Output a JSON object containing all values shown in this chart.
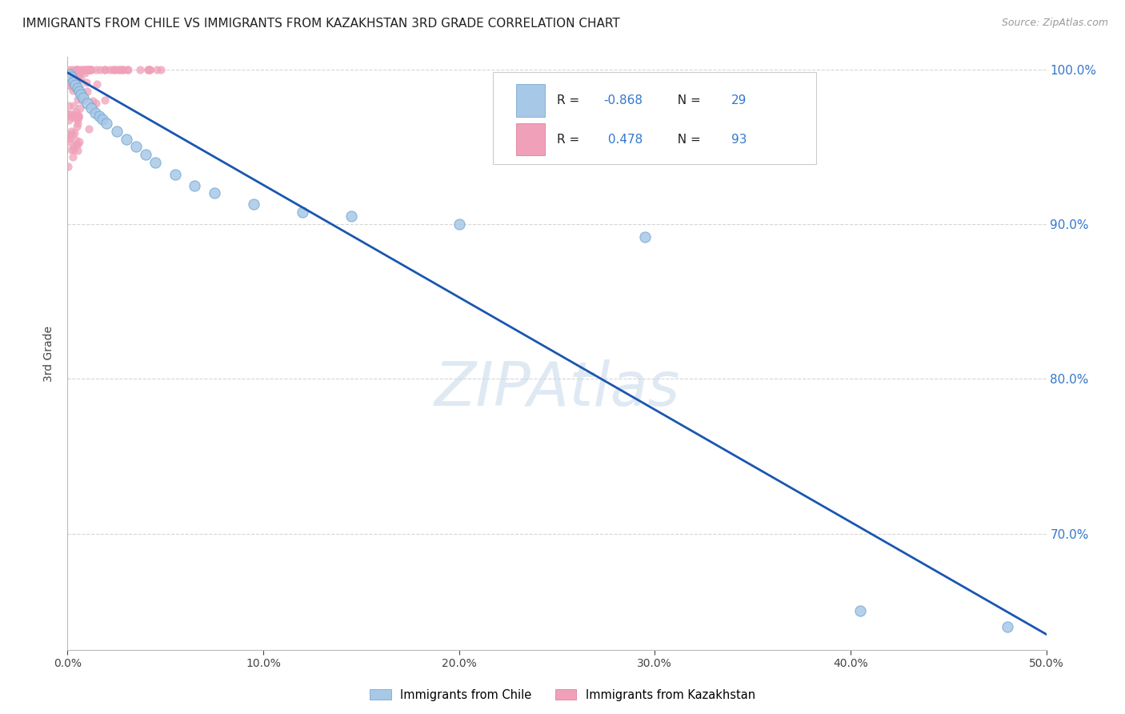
{
  "title": "IMMIGRANTS FROM CHILE VS IMMIGRANTS FROM KAZAKHSTAN 3RD GRADE CORRELATION CHART",
  "source": "Source: ZipAtlas.com",
  "ylabel": "3rd Grade",
  "xlim": [
    0.0,
    0.5
  ],
  "ylim": [
    0.625,
    1.008
  ],
  "watermark": "ZIPAtlas",
  "legend_r_chile": "-0.868",
  "legend_n_chile": "29",
  "legend_r_kaz": "0.478",
  "legend_n_kaz": "93",
  "color_chile": "#a8c8e8",
  "color_chile_edge": "#7aaacf",
  "color_kaz": "#f0a0b8",
  "color_kaz_edge": "#e080a0",
  "color_line": "#1a56b0",
  "color_r_text": "#3377cc",
  "color_n_text": "#3377cc",
  "line_x": [
    0.0,
    0.5
  ],
  "line_y": [
    0.998,
    0.635
  ],
  "title_fontsize": 11,
  "source_fontsize": 9,
  "tick_fontsize": 10,
  "ylabel_fontsize": 9,
  "watermark_fontsize": 55,
  "legend_fontsize": 11,
  "background_color": "#ffffff",
  "grid_color": "#cccccc",
  "scatter_size_chile": 90,
  "scatter_size_kaz": 55
}
